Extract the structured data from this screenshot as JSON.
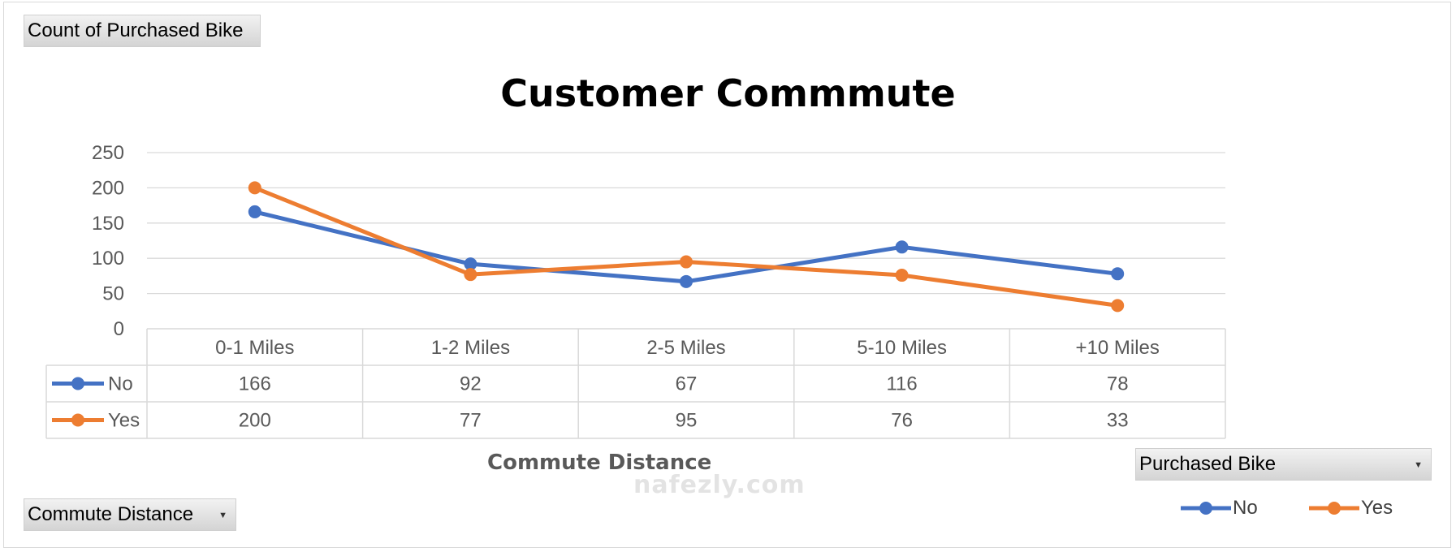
{
  "pivot": {
    "value_field": "Count of Purchased Bike",
    "axis_field": "Commute Distance",
    "legend_field": "Purchased Bike"
  },
  "colors": {
    "no": "#4472c4",
    "yes": "#ed7d31",
    "grid": "#d9d9d9",
    "text": "#595959"
  },
  "watermark": "nafezly.com",
  "chart_data": {
    "type": "line",
    "title": "Customer Commmute",
    "xlabel": "Commute Distance",
    "ylabel": "",
    "ylim": [
      0,
      250
    ],
    "yticks": [
      0,
      50,
      100,
      150,
      200,
      250
    ],
    "categories": [
      "0-1 Miles",
      "1-2 Miles",
      "2-5 Miles",
      "5-10 Miles",
      "+10 Miles"
    ],
    "series": [
      {
        "name": "No",
        "values": [
          166,
          92,
          67,
          116,
          78
        ]
      },
      {
        "name": "Yes",
        "values": [
          200,
          77,
          95,
          76,
          33
        ]
      }
    ],
    "data_table": true,
    "legend_position": "bottom-right",
    "grid": true
  }
}
